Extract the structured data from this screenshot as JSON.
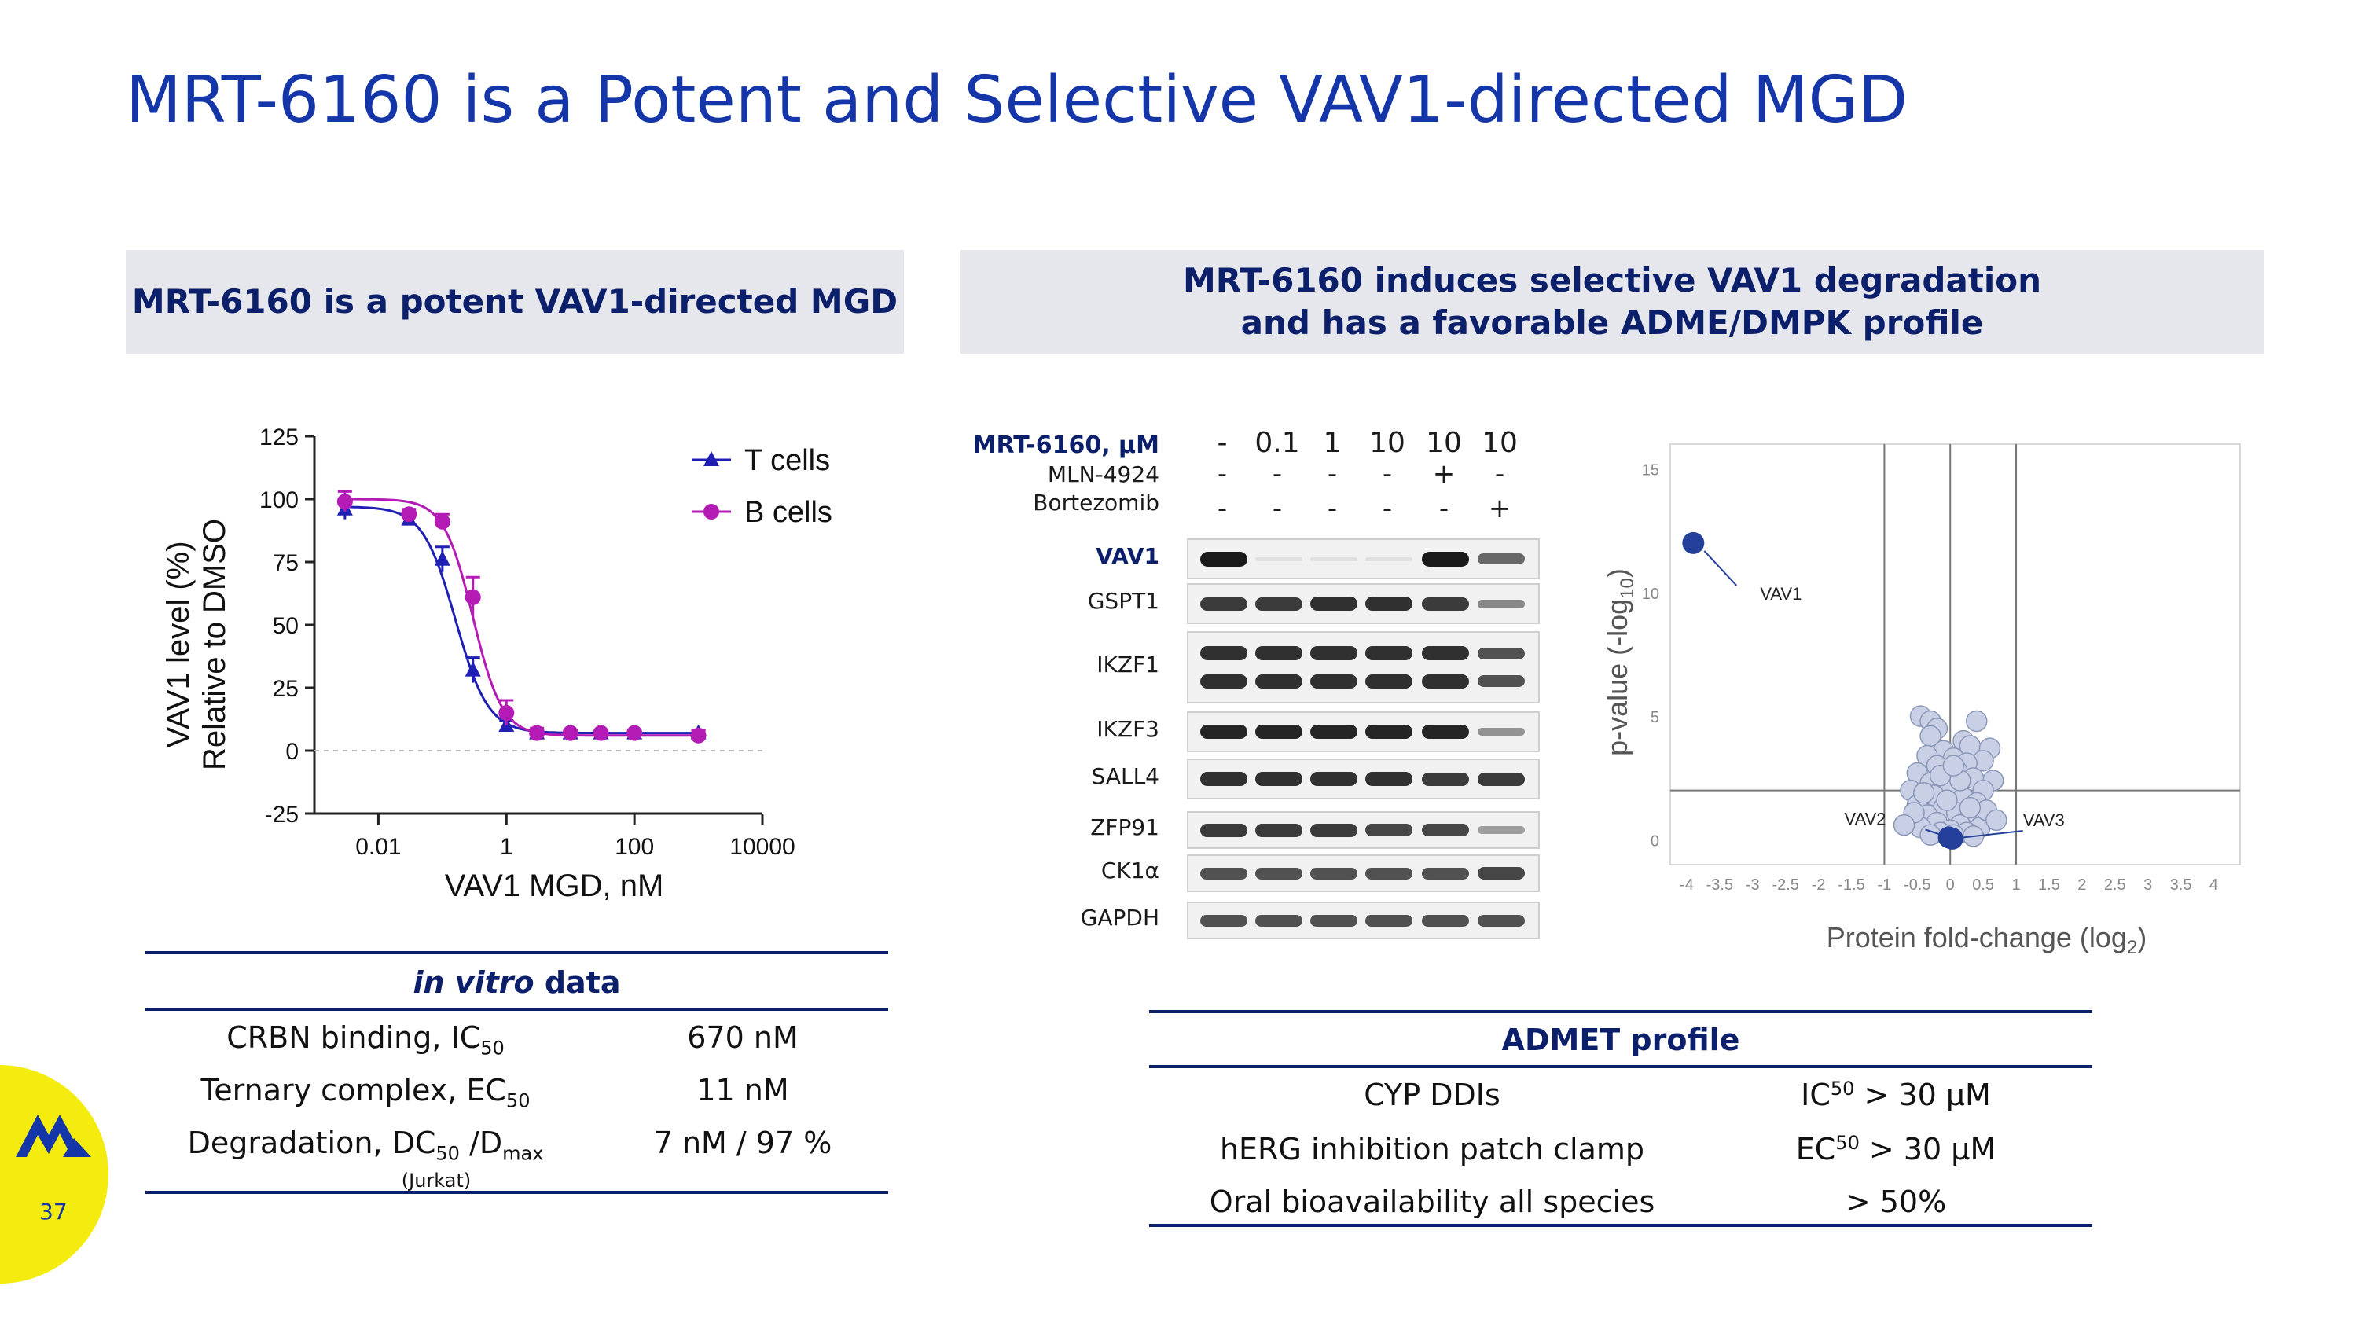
{
  "slide": {
    "title": "MRT-6160 is a Potent and Selective VAV1-directed MGD",
    "page_number": "37",
    "colors": {
      "title": "#1436a8",
      "navy": "#0c1f6b",
      "panel_bg": "#e6e7ec",
      "badge": "#f3ec0e",
      "t_cells": "#1f1fb4",
      "b_cells": "#b41ab4"
    }
  },
  "left_panel": {
    "heading": "MRT-6160 is a potent VAV1-directed MGD"
  },
  "right_panel": {
    "heading_line1": "MRT-6160 induces selective VAV1 degradation",
    "heading_line2": "and has a favorable ADME/DMPK profile"
  },
  "chart_data": [
    {
      "type": "line",
      "title": "",
      "xlabel": "VAV1 MGD, nM",
      "ylabel_line1": "VAV1 level (%)",
      "ylabel_line2": "Relative to DMSO",
      "x_scale": "log10",
      "xlim": [
        0.001,
        10000
      ],
      "ylim": [
        -25,
        125
      ],
      "x_ticks": [
        0.01,
        1,
        100,
        10000
      ],
      "x_tick_labels": [
        "0.01",
        "1",
        "100",
        "10000"
      ],
      "y_ticks": [
        125,
        100,
        75,
        50,
        25,
        0,
        -25
      ],
      "y_tick_labels": [
        "125",
        "100",
        "75",
        "50",
        "25",
        "0",
        "-25"
      ],
      "legend_position": "top-right",
      "series": [
        {
          "name": "T cells",
          "marker": "triangle",
          "color": "#1f1fb4",
          "x": [
            0.003,
            0.03,
            0.1,
            0.3,
            1,
            3,
            10,
            30,
            100,
            1000
          ],
          "y": [
            96,
            92,
            76,
            32,
            10,
            7,
            7,
            7,
            7,
            7
          ],
          "err": [
            4,
            2,
            5,
            5,
            2,
            1,
            1,
            1,
            1,
            1
          ]
        },
        {
          "name": "B cells",
          "marker": "circle",
          "color": "#b41ab4",
          "x": [
            0.003,
            0.03,
            0.1,
            0.3,
            1,
            3,
            10,
            30,
            100,
            1000
          ],
          "y": [
            99,
            94,
            91,
            61,
            15,
            7,
            7,
            7,
            7,
            6
          ],
          "err": [
            4,
            2,
            3,
            8,
            5,
            2,
            1,
            1,
            1,
            2
          ]
        }
      ]
    },
    {
      "type": "scatter",
      "title": "",
      "xlabel": "Protein fold-change (log",
      "xlabel_sub": "2",
      "ylabel": "p-value (-log",
      "ylabel_sub": "10",
      "xlim": [
        -4.25,
        4.4
      ],
      "ylim": [
        -1,
        16
      ],
      "x_tick_labels": [
        "-4",
        "-3.5",
        "-3",
        "-2.5",
        "-2",
        "-1.5",
        "-1",
        "-0.5",
        "0",
        "0.5",
        "1",
        "1.5",
        "2",
        "2.5",
        "3",
        "3.5",
        "4"
      ],
      "y_tick_labels": [
        "0",
        "5",
        "10",
        "15"
      ],
      "threshold_lines": {
        "x": [
          -1,
          0,
          1
        ],
        "y": 2
      },
      "highlighted": [
        {
          "label": "VAV1",
          "x": -3.9,
          "y": 12.0
        },
        {
          "label": "VAV2",
          "x": -0.02,
          "y": 0.1
        },
        {
          "label": "VAV3",
          "x": 0.03,
          "y": 0.05
        }
      ],
      "background_points": [
        [
          -0.45,
          5.0
        ],
        [
          -0.3,
          4.8
        ],
        [
          -0.2,
          4.5
        ],
        [
          0.4,
          4.8
        ],
        [
          -0.3,
          4.2
        ],
        [
          0.2,
          4.0
        ],
        [
          -0.1,
          3.6
        ],
        [
          0.3,
          3.8
        ],
        [
          0.6,
          3.7
        ],
        [
          -0.35,
          3.4
        ],
        [
          0.05,
          3.3
        ],
        [
          0.5,
          3.2
        ],
        [
          -0.2,
          3.0
        ],
        [
          0.25,
          3.1
        ],
        [
          -0.5,
          2.7
        ],
        [
          0.1,
          2.8
        ],
        [
          0.65,
          2.4
        ],
        [
          -0.3,
          2.3
        ],
        [
          0.35,
          2.5
        ],
        [
          -0.6,
          2.0
        ],
        [
          0.0,
          2.2
        ],
        [
          0.5,
          2.0
        ],
        [
          -0.25,
          1.8
        ],
        [
          0.2,
          1.7
        ],
        [
          -0.5,
          1.4
        ],
        [
          0.4,
          1.5
        ],
        [
          -0.1,
          1.3
        ],
        [
          0.1,
          1.1
        ],
        [
          -0.35,
          1.0
        ],
        [
          0.3,
          0.9
        ],
        [
          -0.2,
          0.7
        ],
        [
          0.15,
          0.6
        ],
        [
          -0.45,
          0.5
        ],
        [
          0.45,
          0.5
        ],
        [
          0.0,
          0.4
        ],
        [
          -0.15,
          0.3
        ],
        [
          0.25,
          0.3
        ],
        [
          0.05,
          0.2
        ],
        [
          -0.3,
          0.2
        ],
        [
          0.35,
          0.15
        ],
        [
          -0.05,
          1.6
        ],
        [
          0.15,
          2.4
        ],
        [
          -0.15,
          2.6
        ],
        [
          0.55,
          1.2
        ],
        [
          -0.55,
          1.1
        ],
        [
          0.7,
          0.8
        ],
        [
          -0.7,
          0.6
        ],
        [
          0.05,
          3.0
        ],
        [
          -0.4,
          1.9
        ],
        [
          0.3,
          1.3
        ]
      ]
    }
  ],
  "western_blot": {
    "header_label": "MRT-6160, μM",
    "row2_label": "MLN-4924",
    "row3_label": "Bortezomib",
    "conditions": [
      {
        "dose": "-",
        "mln": "-",
        "bort": "-"
      },
      {
        "dose": "0.1",
        "mln": "-",
        "bort": "-"
      },
      {
        "dose": "1",
        "mln": "-",
        "bort": "-"
      },
      {
        "dose": "10",
        "mln": "-",
        "bort": "-"
      },
      {
        "dose": "10",
        "mln": "+",
        "bort": "-"
      },
      {
        "dose": "10",
        "mln": "-",
        "bort": "+"
      }
    ],
    "proteins": [
      {
        "name": "VAV1",
        "intensities": [
          0.95,
          0.05,
          0.05,
          0.05,
          0.95,
          0.6
        ]
      },
      {
        "name": "GSPT1",
        "intensities": [
          0.8,
          0.8,
          0.85,
          0.85,
          0.8,
          0.45
        ]
      },
      {
        "name": "IKZF1",
        "intensities": [
          0.85,
          0.85,
          0.85,
          0.85,
          0.85,
          0.7
        ]
      },
      {
        "name": "IKZF3",
        "intensities": [
          0.9,
          0.9,
          0.9,
          0.9,
          0.9,
          0.4
        ]
      },
      {
        "name": "SALL4",
        "intensities": [
          0.85,
          0.85,
          0.85,
          0.85,
          0.8,
          0.8
        ]
      },
      {
        "name": "ZFP91",
        "intensities": [
          0.8,
          0.8,
          0.8,
          0.75,
          0.75,
          0.35
        ]
      },
      {
        "name": "CK1α",
        "intensities": [
          0.7,
          0.7,
          0.7,
          0.7,
          0.7,
          0.75
        ]
      },
      {
        "name": "GAPDH",
        "intensities": [
          0.7,
          0.7,
          0.7,
          0.7,
          0.7,
          0.7
        ]
      }
    ]
  },
  "in_vitro_table": {
    "header_italic": "in vitro",
    "header_rest": " data",
    "rows": [
      {
        "label": "CRBN binding, IC",
        "sub": "50",
        "suffix": "",
        "sub2": "",
        "value": "670 nM"
      },
      {
        "label": "Ternary complex, EC",
        "sub": "50",
        "suffix": "",
        "sub2": "",
        "value": "11 nM"
      },
      {
        "label": "Degradation, DC",
        "sub": "50",
        "suffix": " /D",
        "sub2": "max",
        "value": "7 nM / 97 %"
      }
    ],
    "footnote": "(Jurkat)"
  },
  "admet_table": {
    "header": "ADMET profile",
    "rows": [
      {
        "label": "CYP DDIs",
        "v_prefix": "IC",
        "v_sub": "50",
        "v_rest": " > 30 μM"
      },
      {
        "label": "hERG inhibition patch clamp",
        "v_prefix": "EC",
        "v_sub": "50",
        "v_rest": " > 30 μM"
      },
      {
        "label": "Oral bioavailability all species",
        "v_prefix": "> 50%",
        "v_sub": "",
        "v_rest": ""
      }
    ]
  }
}
